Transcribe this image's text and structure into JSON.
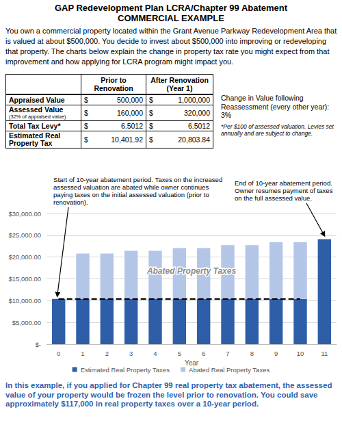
{
  "header": {
    "title": "GAP Redevelopment Plan LCRA/Chapter 99 Abatement",
    "subtitle": "COMMERCIAL EXAMPLE"
  },
  "intro": "You own a commercial property located within the Grant Avenue Parkway Redevelopment Area that is valued at about $500,000. You decide to invest about $500,000 into improving or redeveloping that property. The charts below explain the change in property tax rate you might expect from that improvement and how applying for LCRA program might impact you.",
  "table": {
    "header": [
      [
        "Prior to",
        "Renovation"
      ],
      [
        "After Renovation",
        "(Year 1)"
      ]
    ],
    "rows": [
      {
        "label": "Appraised Value",
        "prior": [
          "$",
          "500,000"
        ],
        "after": [
          "$",
          "1,000,000"
        ]
      },
      {
        "label": "Assessed Value",
        "note": "(32% of appraised value)",
        "prior": [
          "$",
          "160,000"
        ],
        "after": [
          "$",
          "320,000"
        ]
      },
      {
        "label": "Total Tax Levy*",
        "prior": [
          "$",
          "6.5012"
        ],
        "after": [
          "$",
          "6.5012"
        ]
      },
      {
        "label": "Estimated Real Property Tax",
        "prior": [
          "$",
          "10,401.92"
        ],
        "after": [
          "$",
          "20,803.84"
        ]
      }
    ]
  },
  "notes": {
    "reassessment": "Change in Value following Reassessment (every other year): 3%",
    "levy_footnote": "*Per $100 of assessed valuation. Levies set annually and are subject to change."
  },
  "annotations": {
    "start": "Start of 10-year abatement period.  Taxes on the increased assessed valuation are abated while owner continues paying taxes on the initial assessed valuation (prior to renovation).",
    "end": "End of 10-year abatement period. Owner resumes payment of taxes on the full assessed value."
  },
  "chart_data": {
    "type": "bar",
    "stacked": true,
    "x_label": "Year",
    "categories": [
      "0",
      "1",
      "2",
      "3",
      "4",
      "5",
      "6",
      "7",
      "8",
      "9",
      "10",
      "11"
    ],
    "series": [
      {
        "name": "Estimated Real Property Taxes",
        "color": "#2e5ea8",
        "values": [
          10401.92,
          10401.92,
          10401.92,
          10401.92,
          10401.92,
          10401.92,
          10401.92,
          10401.92,
          10401.92,
          10401.92,
          10401.92,
          24117
        ]
      },
      {
        "name": "Abated Real Property Taxes",
        "color": "#b4c6e7",
        "values": [
          null,
          10401.92,
          10401.92,
          11026,
          11026,
          11669,
          11669,
          12331,
          12331,
          13013,
          13013,
          null
        ]
      }
    ],
    "ylim": [
      0,
      30000
    ],
    "yticks": [
      {
        "value": 0,
        "label": "$-"
      },
      {
        "value": 5000,
        "label": "$5,000.00"
      },
      {
        "value": 10000,
        "label": "$10,000.00"
      },
      {
        "value": 15000,
        "label": "$15,000.00"
      },
      {
        "value": 20000,
        "label": "$20,000.00"
      },
      {
        "value": 25000,
        "label": "$25,000.00"
      },
      {
        "value": 30000,
        "label": "$30,000.00"
      }
    ],
    "grid": true,
    "legend": "bottom",
    "overlay_text": "Abated Property Taxes",
    "reference_line": {
      "value": 10401.92,
      "from": "0",
      "to": "10",
      "line_style": "dashed",
      "color": "#000000"
    }
  },
  "footer": "In this example, if you applied for Chapter 99 real property tax abatement, the assessed value of your property would be frozen the level prior to renovation. You could save approximately $117,000 in real property taxes over a 10-year period."
}
